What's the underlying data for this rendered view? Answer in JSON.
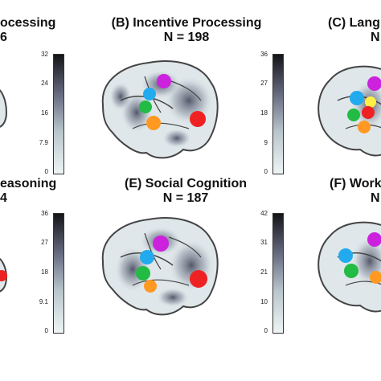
{
  "panels": [
    {
      "id": "A",
      "title_line1": "ocessing",
      "title_line2": "6",
      "ticks": [],
      "col": 0
    },
    {
      "id": "B",
      "title_line1": "(B) Incentive Processing",
      "title_line2": "N = 198",
      "ticks": [
        "36",
        "27",
        "18",
        "9",
        "0"
      ],
      "col": 1
    },
    {
      "id": "C",
      "title_line1": "(C) Lang",
      "title_line2": "N",
      "ticks": [],
      "col": 2
    },
    {
      "id": "D",
      "title_line1": "easoning",
      "title_line2": "4",
      "ticks": [],
      "col": 0
    },
    {
      "id": "E",
      "title_line1": "(E) Social Cognition",
      "title_line2": "N = 187",
      "ticks": [
        "42",
        "31",
        "21",
        "10",
        "0"
      ],
      "col": 1
    },
    {
      "id": "F",
      "title_line1": "(F) Work",
      "title_line2": "N",
      "ticks": [],
      "col": 2
    }
  ],
  "left_colorbars": [
    {
      "ticks": [
        "32",
        "24",
        "16",
        "7.9",
        "0"
      ]
    },
    {
      "ticks": [
        "36",
        "27",
        "18",
        "9.1",
        "0"
      ]
    }
  ],
  "colors": {
    "magenta": "#cc22dd",
    "cyan": "#22aaee",
    "green": "#22bb44",
    "orange": "#ff9922",
    "red": "#ee2222"
  }
}
